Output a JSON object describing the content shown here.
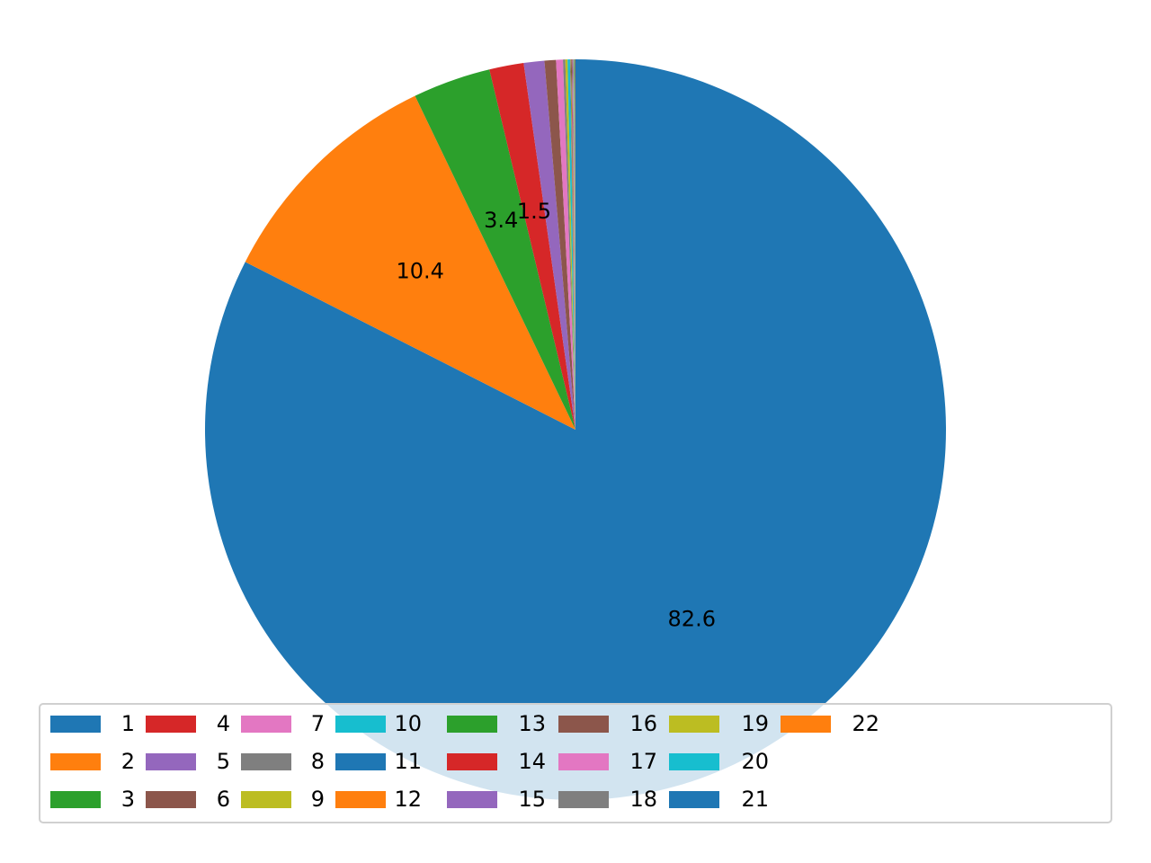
{
  "chart_data": {
    "type": "pie",
    "title": "",
    "start_angle_deg": 90,
    "direction": "clockwise",
    "categories": [
      "1",
      "2",
      "3",
      "4",
      "5",
      "6",
      "7",
      "8",
      "9",
      "10",
      "11",
      "12",
      "13",
      "14",
      "15",
      "16",
      "17",
      "18",
      "19",
      "20",
      "21",
      "22"
    ],
    "values": [
      82.6,
      10.4,
      3.4,
      1.5,
      0.9,
      0.5,
      0.3,
      0.1,
      0.1,
      0.1,
      0.02,
      0.02,
      0.02,
      0.02,
      0.02,
      0.02,
      0.02,
      0.02,
      0.02,
      0.02,
      0.02,
      0.02
    ],
    "slice_labels": [
      "82.6",
      "10.4",
      "3.4",
      "1.5",
      "",
      "",
      "",
      "",
      "",
      "",
      "",
      "",
      "",
      "",
      "",
      "",
      "",
      "",
      "",
      "",
      "",
      ""
    ],
    "colors": [
      "#1f77b4",
      "#ff7f0e",
      "#2ca02c",
      "#d62728",
      "#9467bd",
      "#8c564b",
      "#e377c2",
      "#7f7f7f",
      "#bcbd22",
      "#17becf",
      "#1f77b4",
      "#ff7f0e",
      "#2ca02c",
      "#d62728",
      "#9467bd",
      "#8c564b",
      "#e377c2",
      "#7f7f7f",
      "#bcbd22",
      "#17becf",
      "#1f77b4",
      "#ff7f0e"
    ],
    "legend": {
      "placement": "bottom-center",
      "columns": 10
    }
  }
}
